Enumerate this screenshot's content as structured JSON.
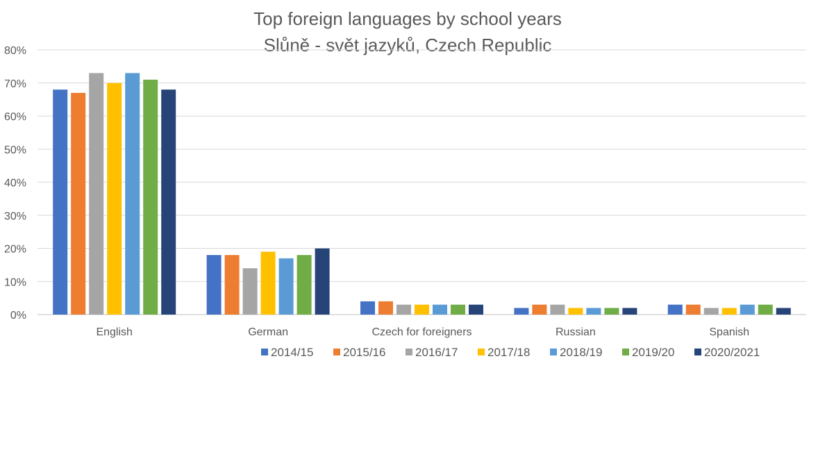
{
  "chart_data": {
    "type": "bar",
    "title": "Top foreign languages by school years",
    "subtitle": "Slůně - svět jazyků, Czech Republic",
    "xlabel": "",
    "ylabel": "",
    "ylim": [
      0,
      0.8
    ],
    "yticks": [
      "0%",
      "10%",
      "20%",
      "30%",
      "40%",
      "50%",
      "60%",
      "70%",
      "80%"
    ],
    "grid": true,
    "legend": "bottom",
    "categories": [
      "English",
      "German",
      "Czech for foreigners",
      "Russian",
      "Spanish"
    ],
    "series": [
      {
        "name": "2014/15",
        "color": "#4472C4",
        "values": [
          0.68,
          0.18,
          0.04,
          0.02,
          0.03
        ]
      },
      {
        "name": "2015/16",
        "color": "#ED7D31",
        "values": [
          0.67,
          0.18,
          0.04,
          0.03,
          0.03
        ]
      },
      {
        "name": "2016/17",
        "color": "#A5A5A5",
        "values": [
          0.73,
          0.14,
          0.03,
          0.03,
          0.02
        ]
      },
      {
        "name": "2017/18",
        "color": "#FFC000",
        "values": [
          0.7,
          0.19,
          0.03,
          0.02,
          0.02
        ]
      },
      {
        "name": "2018/19",
        "color": "#5B9BD5",
        "values": [
          0.73,
          0.17,
          0.03,
          0.02,
          0.03
        ]
      },
      {
        "name": "2019/20",
        "color": "#70AD47",
        "values": [
          0.71,
          0.18,
          0.03,
          0.02,
          0.03
        ]
      },
      {
        "name": "2020/2021",
        "color": "#264478",
        "values": [
          0.68,
          0.2,
          0.03,
          0.02,
          0.02
        ]
      }
    ]
  }
}
